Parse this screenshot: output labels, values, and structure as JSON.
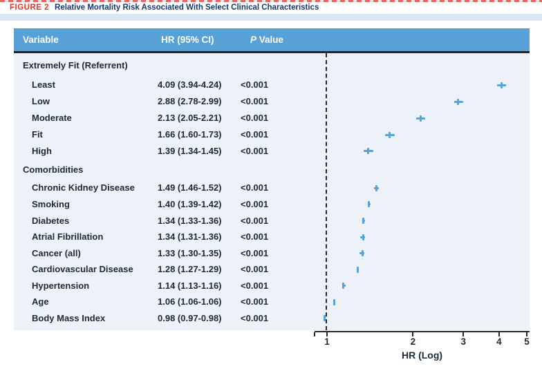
{
  "figure": {
    "label": "FIGURE 2",
    "title": "Relative Mortality Risk Associated With Select Clinical Characteristics"
  },
  "table": {
    "headers": {
      "variable": "Variable",
      "hr": "HR (95% CI)",
      "p_italic": "P",
      "p_rest": "Value"
    },
    "rows": [
      {
        "label": "Extremely Fit (Referrent)",
        "group": true,
        "hr_ci": "",
        "p": ""
      },
      {
        "label": "Least",
        "group": false,
        "hr_ci": "4.09 (3.94-4.24)",
        "p": "<0.001"
      },
      {
        "label": "Low",
        "group": false,
        "hr_ci": "2.88 (2.78-2.99)",
        "p": "<0.001"
      },
      {
        "label": "Moderate",
        "group": false,
        "hr_ci": "2.13 (2.05-2.21)",
        "p": "<0.001"
      },
      {
        "label": "Fit",
        "group": false,
        "hr_ci": "1.66 (1.60-1.73)",
        "p": "<0.001"
      },
      {
        "label": "High",
        "group": false,
        "hr_ci": "1.39 (1.34-1.45)",
        "p": "<0.001"
      },
      {
        "label": "Comorbidities",
        "group": true,
        "hr_ci": "",
        "p": ""
      },
      {
        "label": "Chronic Kidney Disease",
        "group": false,
        "hr_ci": "1.49 (1.46-1.52)",
        "p": "<0.001"
      },
      {
        "label": "Smoking",
        "group": false,
        "hr_ci": "1.40 (1.39-1.42)",
        "p": "<0.001"
      },
      {
        "label": "Diabetes",
        "group": false,
        "hr_ci": "1.34 (1.33-1.36)",
        "p": "<0.001"
      },
      {
        "label": "Atrial Fibrillation",
        "group": false,
        "hr_ci": "1.34 (1.31-1.36)",
        "p": "<0.001"
      },
      {
        "label": "Cancer (all)",
        "group": false,
        "hr_ci": "1.33 (1.30-1.35)",
        "p": "<0.001"
      },
      {
        "label": "Cardiovascular Disease",
        "group": false,
        "hr_ci": "1.28 (1.27-1.29)",
        "p": "<0.001"
      },
      {
        "label": "Hypertension",
        "group": false,
        "hr_ci": "1.14 (1.13-1.16)",
        "p": "<0.001"
      },
      {
        "label": "Age",
        "group": false,
        "hr_ci": "1.06 (1.06-1.06)",
        "p": "<0.001"
      },
      {
        "label": "Body Mass Index",
        "group": false,
        "hr_ci": "0.98 (0.97-0.98)",
        "p": "<0.001"
      }
    ]
  },
  "chart_data": {
    "type": "scatter",
    "subtype": "forest-plot",
    "title": "Relative Mortality Risk Associated With Select Clinical Characteristics",
    "xlabel": "HR (Log)",
    "x_scale": "log",
    "x_ticks": [
      1,
      2,
      3,
      4,
      5
    ],
    "xlim": [
      0.9,
      5.1
    ],
    "reference_line": 1,
    "referent_group": "Extremely Fit (Referrent)",
    "points": [
      {
        "label": "Least",
        "hr": 4.09,
        "lo": 3.94,
        "hi": 4.24,
        "p": "<0.001"
      },
      {
        "label": "Low",
        "hr": 2.88,
        "lo": 2.78,
        "hi": 2.99,
        "p": "<0.001"
      },
      {
        "label": "Moderate",
        "hr": 2.13,
        "lo": 2.05,
        "hi": 2.21,
        "p": "<0.001"
      },
      {
        "label": "Fit",
        "hr": 1.66,
        "lo": 1.6,
        "hi": 1.73,
        "p": "<0.001"
      },
      {
        "label": "High",
        "hr": 1.39,
        "lo": 1.34,
        "hi": 1.45,
        "p": "<0.001"
      },
      {
        "label": "Chronic Kidney Disease",
        "hr": 1.49,
        "lo": 1.46,
        "hi": 1.52,
        "p": "<0.001"
      },
      {
        "label": "Smoking",
        "hr": 1.4,
        "lo": 1.39,
        "hi": 1.42,
        "p": "<0.001"
      },
      {
        "label": "Diabetes",
        "hr": 1.34,
        "lo": 1.33,
        "hi": 1.36,
        "p": "<0.001"
      },
      {
        "label": "Atrial Fibrillation",
        "hr": 1.34,
        "lo": 1.31,
        "hi": 1.36,
        "p": "<0.001"
      },
      {
        "label": "Cancer (all)",
        "hr": 1.33,
        "lo": 1.3,
        "hi": 1.35,
        "p": "<0.001"
      },
      {
        "label": "Cardiovascular Disease",
        "hr": 1.28,
        "lo": 1.27,
        "hi": 1.29,
        "p": "<0.001"
      },
      {
        "label": "Hypertension",
        "hr": 1.14,
        "lo": 1.13,
        "hi": 1.16,
        "p": "<0.001"
      },
      {
        "label": "Age",
        "hr": 1.06,
        "lo": 1.06,
        "hi": 1.06,
        "p": "<0.001"
      },
      {
        "label": "Body Mass Index",
        "hr": 0.98,
        "lo": 0.97,
        "hi": 0.98,
        "p": "<0.001"
      }
    ]
  },
  "colors": {
    "header_bg": "#57a1d6",
    "body_bg": "#edf2f9",
    "marker": "#58a3d6",
    "figure_label_red": "#e8332f",
    "title_navy": "#17386e",
    "divider_dark": "#1f2630",
    "axis_dark": "#24262b",
    "band_light_blue": "#d9e6f3"
  }
}
